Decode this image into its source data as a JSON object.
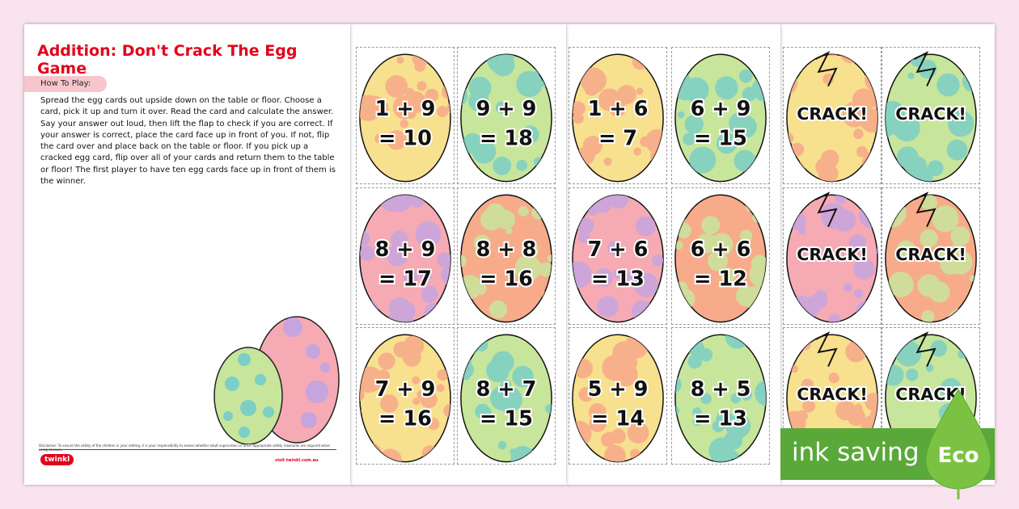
{
  "title": "Addition: Don't Crack The Egg Game",
  "how_to_play": "How To Play:",
  "instructions": "Spread the egg cards out upside down on the table or floor. Choose a card, pick it up and turn it over. Read the card and calculate the answer. Say your answer out loud, then lift the flap to check if you are correct. If your answer is correct, place the card face up in front of you. If not, flip the card over and place back on the table or floor. If you pick up a cracked egg card, flip over all of your cards and return them to the table or floor! The first player to have ten egg cards face up in front of them is the winner.",
  "disclaimer": "Disclaimer: To ensure the safety of the children in your setting, it is your responsibility to assess whether adult supervision or other appropriate safety measures are required when using scissors.",
  "logo": "twinkl",
  "visit": "visit twinkl.com.au",
  "egg_styles": {
    "yellow": [
      "#f7e08e",
      "#f7a98a"
    ],
    "green": [
      "#c8e59c",
      "#7ccfc6"
    ],
    "pink": [
      "#f5aab4",
      "#c6a5de"
    ],
    "orange": [
      "#f7ab8a",
      "#c9e49c"
    ]
  },
  "pages": [
    [
      {
        "style": "yellow",
        "l1": "1 + 9",
        "l2": "= 10"
      },
      {
        "style": "green",
        "l1": "9 + 9",
        "l2": "= 18"
      },
      {
        "style": "pink",
        "l1": "8 + 9",
        "l2": "= 17"
      },
      {
        "style": "orange",
        "l1": "8 + 8",
        "l2": "= 16"
      },
      {
        "style": "yellow",
        "l1": "7 + 9",
        "l2": "= 16"
      },
      {
        "style": "green",
        "l1": "8 + 7",
        "l2": "= 15"
      }
    ],
    [
      {
        "style": "yellow",
        "l1": "1 + 6",
        "l2": "= 7"
      },
      {
        "style": "green",
        "l1": "6 + 9",
        "l2": "= 15"
      },
      {
        "style": "pink",
        "l1": "7 + 6",
        "l2": "= 13"
      },
      {
        "style": "orange",
        "l1": "6 + 6",
        "l2": "= 12"
      },
      {
        "style": "yellow",
        "l1": "5 + 9",
        "l2": "= 14"
      },
      {
        "style": "green",
        "l1": "8 + 5",
        "l2": "= 13"
      }
    ],
    [
      {
        "style": "yellow",
        "crack": "CRACK!"
      },
      {
        "style": "green",
        "crack": "CRACK!"
      },
      {
        "style": "pink",
        "crack": "CRACK!"
      },
      {
        "style": "orange",
        "crack": "CRACK!"
      },
      {
        "style": "yellow",
        "crack": "CRACK!"
      },
      {
        "style": "green",
        "crack": "CRACK!"
      }
    ]
  ],
  "eco": {
    "label": "ink saving",
    "badge": "Eco"
  }
}
